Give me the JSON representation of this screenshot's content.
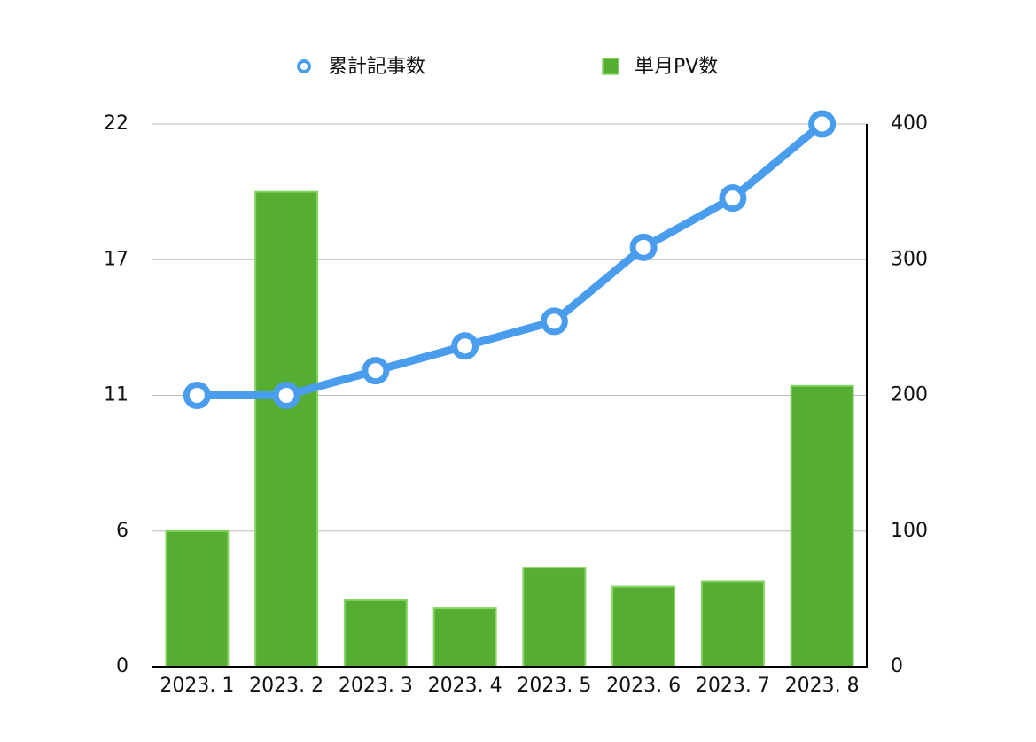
{
  "chart_data": {
    "type": "combo",
    "categories": [
      "2023. 1",
      "2023. 2",
      "2023. 3",
      "2023. 4",
      "2023. 5",
      "2023. 6",
      "2023. 7",
      "2023. 8"
    ],
    "series": [
      {
        "name": "累計記事数",
        "type": "line",
        "color": "#4a9ded",
        "values": [
          11,
          11,
          12,
          13,
          14,
          17,
          19,
          22
        ]
      },
      {
        "name": "単月PV数",
        "type": "bar",
        "axis": "y2",
        "color": "#55ad32",
        "values": [
          100,
          350,
          49,
          43,
          73,
          59,
          63,
          207
        ]
      }
    ],
    "ylim": [
      0,
      22
    ],
    "yticks": [
      0,
      {
        "value": 5.5,
        "label": "6"
      },
      11,
      {
        "value": 16.5,
        "label": "17"
      },
      22
    ],
    "y2lim": [
      0,
      400
    ],
    "y2ticks": [
      0,
      100,
      200,
      300,
      400
    ],
    "grid": true
  }
}
